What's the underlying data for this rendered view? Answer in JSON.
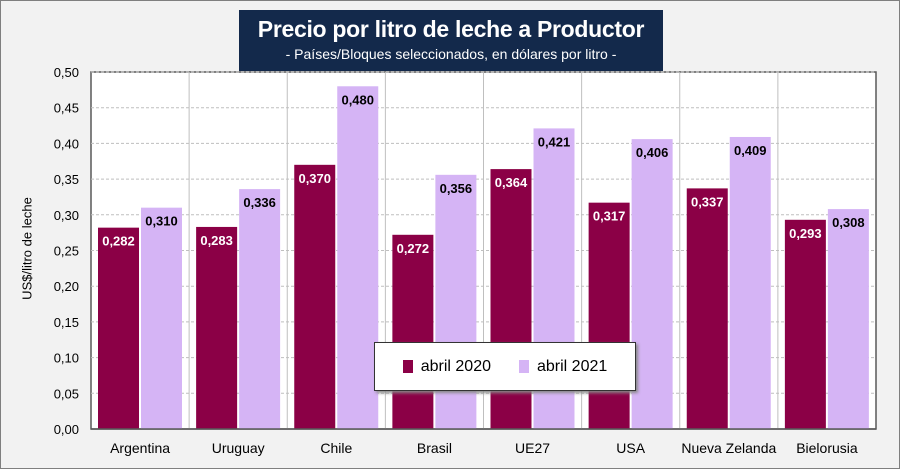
{
  "chart_data": {
    "type": "bar",
    "title": "Precio por litro de leche a Productor",
    "subtitle": "- Países/Bloques seleccionados, en dólares por litro -",
    "xlabel": "",
    "ylabel": "US$/litro de leche",
    "ylim": [
      0,
      0.5
    ],
    "yticks": [
      "0,00",
      "0,05",
      "0,10",
      "0,15",
      "0,20",
      "0,25",
      "0,30",
      "0,35",
      "0,40",
      "0,45",
      "0,50"
    ],
    "categories": [
      "Argentina",
      "Uruguay",
      "Chile",
      "Brasil",
      "UE27",
      "USA",
      "Nueva Zelanda",
      "Bielorusia"
    ],
    "series": [
      {
        "name": "abril 2020",
        "color": "#8b0046",
        "values": [
          0.282,
          0.283,
          0.37,
          0.272,
          0.364,
          0.317,
          0.337,
          0.293
        ],
        "labels": [
          "0,282",
          "0,283",
          "0,370",
          "0,272",
          "0,364",
          "0,317",
          "0,337",
          "0,293"
        ]
      },
      {
        "name": "abril 2021",
        "color": "#d5b4f5",
        "values": [
          0.31,
          0.336,
          0.48,
          0.356,
          0.421,
          0.406,
          0.409,
          0.308
        ],
        "labels": [
          "0,310",
          "0,336",
          "0,480",
          "0,356",
          "0,421",
          "0,406",
          "0,409",
          "0,308"
        ]
      }
    ],
    "grid": true,
    "legend_position": "bottom-center"
  }
}
